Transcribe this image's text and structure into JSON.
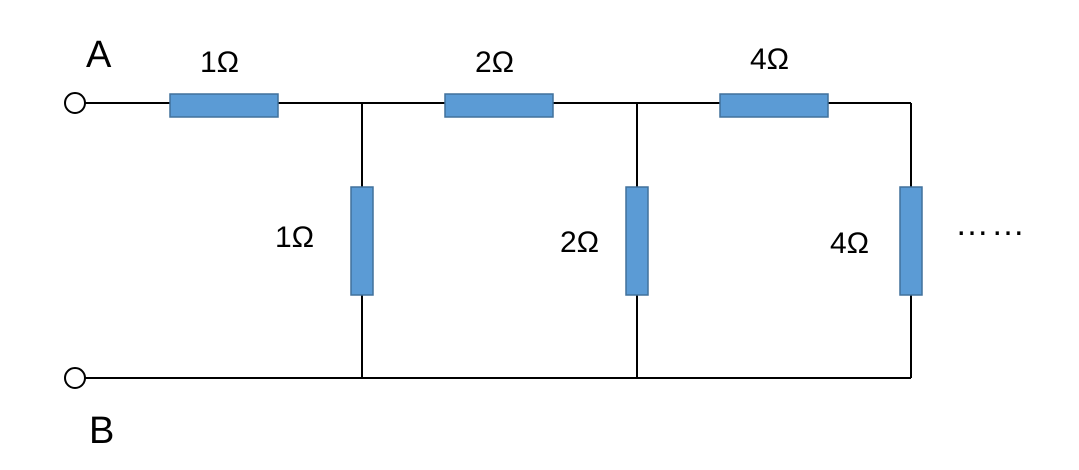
{
  "terminals": {
    "a": "A",
    "b": "B"
  },
  "resistors": {
    "series_1": "1Ω",
    "series_2": "2Ω",
    "series_3": "4Ω",
    "shunt_1": "1Ω",
    "shunt_2": "2Ω",
    "shunt_3": "4Ω"
  },
  "continuation": "……",
  "colors": {
    "resistor_fill": "#5b9bd5",
    "resistor_stroke": "#41719c",
    "wire": "#000000"
  }
}
